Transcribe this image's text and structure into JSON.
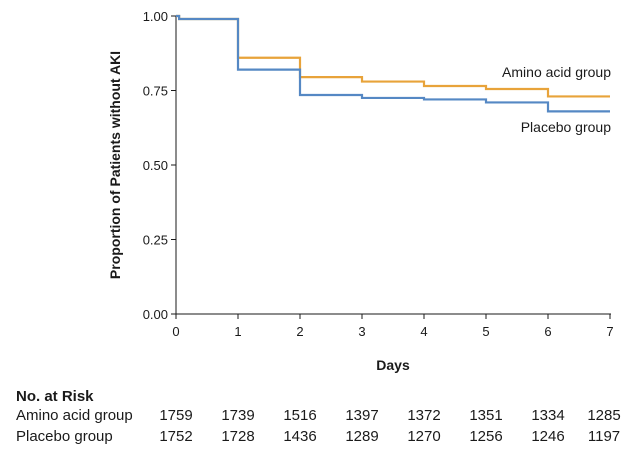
{
  "chart_data": {
    "type": "line",
    "ylabel": "Proportion of Patients without AKI",
    "xlabel": "Days",
    "xlim": [
      0,
      7
    ],
    "ylim": [
      0,
      1
    ],
    "x_ticks": [
      "0",
      "1",
      "2",
      "3",
      "4",
      "5",
      "6",
      "7"
    ],
    "y_ticks": [
      "0.00",
      "0.25",
      "0.50",
      "0.75",
      "1.00"
    ],
    "grid": false,
    "step": true,
    "series": [
      {
        "name": "Amino acid group",
        "color": "#E8A33A",
        "x": [
          0,
          0.05,
          1,
          2,
          3,
          4,
          5,
          6,
          7
        ],
        "values": [
          1.0,
          0.99,
          0.86,
          0.795,
          0.78,
          0.765,
          0.755,
          0.73,
          0.73
        ]
      },
      {
        "name": "Placebo group",
        "color": "#5588C4",
        "x": [
          0,
          0.05,
          1,
          2,
          3,
          4,
          5,
          6,
          7
        ],
        "values": [
          1.0,
          0.99,
          0.82,
          0.735,
          0.725,
          0.72,
          0.71,
          0.68,
          0.68
        ]
      }
    ]
  },
  "risk_table": {
    "title": "No. at Risk",
    "rows": [
      {
        "label": "Amino acid group",
        "values": [
          "1759",
          "1739",
          "1516",
          "1397",
          "1372",
          "1351",
          "1334",
          "1285"
        ]
      },
      {
        "label": "Placebo group",
        "values": [
          "1752",
          "1728",
          "1436",
          "1289",
          "1270",
          "1256",
          "1246",
          "1197"
        ]
      }
    ]
  }
}
